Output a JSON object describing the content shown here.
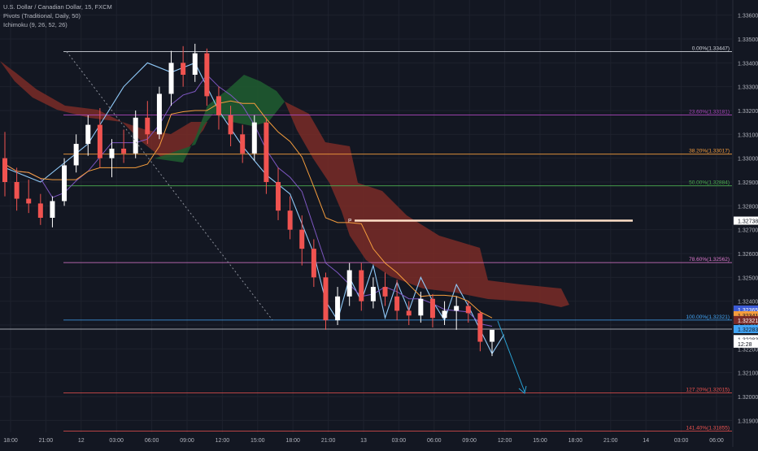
{
  "header": {
    "symbol_line": "U.S. Dollar / Canadian Dollar, 15, FXCM",
    "indicator_1": "Pivots (Traditional, Daily, 50)",
    "indicator_2": "Ichimoku (9, 26, 52, 26)"
  },
  "colors": {
    "background": "#131722",
    "grid": "#1e222d",
    "candle_up": "#ffffff",
    "candle_down": "#f05350",
    "ichimoku_bull_cloud": "#1f5a30",
    "ichimoku_bear_cloud": "#7a2b27",
    "lagging_span": "#90caf9",
    "kijun": "#f59d3d",
    "tenkan": "#7e57c2",
    "pivot_line": "#ffe0c8",
    "projection_arrow": "#29a3d6"
  },
  "chart_data": {
    "type": "line",
    "title": "U.S. Dollar / Canadian Dollar, 15, FXCM",
    "ylim": [
      1.3185,
      1.3365
    ],
    "y_ticks": [
      "1.33600",
      "1.33500",
      "1.33400",
      "1.33300",
      "1.33200",
      "1.33100",
      "1.33000",
      "1.32900",
      "1.32800",
      "1.32700",
      "1.32600",
      "1.32500",
      "1.32400",
      "1.32300",
      "1.32200",
      "1.32100",
      "1.32000",
      "1.31900"
    ],
    "x_ticks": [
      "18:00",
      "21:00",
      "12",
      "03:00",
      "06:00",
      "09:00",
      "12:00",
      "15:00",
      "18:00",
      "21:00",
      "13",
      "03:00",
      "06:00",
      "09:00",
      "12:00",
      "15:00",
      "18:00",
      "21:00",
      "14",
      "03:00",
      "06:00"
    ],
    "fibonacci_levels": [
      {
        "label": "0.00%(1.33447)",
        "price": 1.33447,
        "color": "#d1d4dc"
      },
      {
        "label": "23.60%(1.33181)",
        "price": 1.33181,
        "color": "#ab47bc"
      },
      {
        "label": "38.20%(1.33017)",
        "price": 1.33017,
        "color": "#f59d3d"
      },
      {
        "label": "50.00%(1.32884)",
        "price": 1.32884,
        "color": "#4caf50"
      },
      {
        "label": "78.60%(1.32562)",
        "price": 1.32562,
        "color": "#e07ad0"
      },
      {
        "label": "100.00%(1.32321)",
        "price": 1.32321,
        "color": "#42a5f5"
      },
      {
        "label": "127.20%(1.32015)",
        "price": 1.32015,
        "color": "#f05350"
      },
      {
        "label": "141.40%(1.31855)",
        "price": 1.31855,
        "color": "#f05350"
      }
    ],
    "pivot": {
      "label": "P",
      "price": 1.32738
    },
    "price_badges": [
      {
        "text": "1.32738",
        "price": 1.32738,
        "bg": "#ffffff",
        "fg": "#131722"
      },
      {
        "text": "1.32365",
        "price": 1.32365,
        "bg": "#3c5bd6",
        "fg": "#ffffff"
      },
      {
        "text": "1.32341",
        "price": 1.32341,
        "bg": "#f59d3d",
        "fg": "#131722"
      },
      {
        "text": "1.32321",
        "price": 1.32321,
        "bg": "#7a2b27",
        "fg": "#ffffff"
      },
      {
        "text": "1.32283",
        "price": 1.32283,
        "bg": "#42a5f5",
        "fg": "#131722"
      },
      {
        "text": "1.32283",
        "price": 1.32241,
        "bg": "#ffffff",
        "fg": "#131722"
      },
      {
        "text": "12:28",
        "price": 1.32222,
        "bg": "#ffffff",
        "fg": "#131722"
      }
    ],
    "candles": [
      [
        1.33,
        1.3311,
        1.3284,
        1.329
      ],
      [
        1.329,
        1.3296,
        1.3278,
        1.3283
      ],
      [
        1.3283,
        1.3291,
        1.3277,
        1.3281
      ],
      [
        1.3281,
        1.3285,
        1.3272,
        1.3275
      ],
      [
        1.3275,
        1.3284,
        1.3271,
        1.3282
      ],
      [
        1.3282,
        1.33,
        1.328,
        1.3297
      ],
      [
        1.3297,
        1.331,
        1.3294,
        1.3306
      ],
      [
        1.3306,
        1.3318,
        1.3301,
        1.3314
      ],
      [
        1.3314,
        1.3321,
        1.3296,
        1.33
      ],
      [
        1.33,
        1.3308,
        1.3292,
        1.3304
      ],
      [
        1.3304,
        1.3312,
        1.3298,
        1.3302
      ],
      [
        1.3302,
        1.332,
        1.33,
        1.3317
      ],
      [
        1.3317,
        1.3324,
        1.3306,
        1.331
      ],
      [
        1.331,
        1.333,
        1.3308,
        1.3327
      ],
      [
        1.3327,
        1.3345,
        1.3322,
        1.334
      ],
      [
        1.334,
        1.3347,
        1.333,
        1.3335
      ],
      [
        1.3335,
        1.3348,
        1.3332,
        1.3344
      ],
      [
        1.3344,
        1.3346,
        1.3322,
        1.3326
      ],
      [
        1.3326,
        1.333,
        1.3312,
        1.3318
      ],
      [
        1.3318,
        1.3322,
        1.3305,
        1.331
      ],
      [
        1.331,
        1.3314,
        1.3298,
        1.3302
      ],
      [
        1.3302,
        1.3318,
        1.3299,
        1.3315
      ],
      [
        1.3315,
        1.3317,
        1.3285,
        1.329
      ],
      [
        1.329,
        1.3296,
        1.3274,
        1.3278
      ],
      [
        1.3278,
        1.3284,
        1.3266,
        1.327
      ],
      [
        1.327,
        1.3276,
        1.3255,
        1.3262
      ],
      [
        1.3262,
        1.3266,
        1.3246,
        1.325
      ],
      [
        1.325,
        1.3252,
        1.3228,
        1.3232
      ],
      [
        1.3232,
        1.3246,
        1.323,
        1.3242
      ],
      [
        1.3242,
        1.3256,
        1.3238,
        1.3253
      ],
      [
        1.3253,
        1.3256,
        1.3236,
        1.324
      ],
      [
        1.324,
        1.325,
        1.3237,
        1.3246
      ],
      [
        1.3246,
        1.3252,
        1.3238,
        1.3242
      ],
      [
        1.3242,
        1.3249,
        1.3232,
        1.3236
      ],
      [
        1.3236,
        1.324,
        1.323,
        1.3234
      ],
      [
        1.3234,
        1.3244,
        1.3231,
        1.3241
      ],
      [
        1.3241,
        1.3243,
        1.3229,
        1.3233
      ],
      [
        1.3233,
        1.324,
        1.323,
        1.3236
      ],
      [
        1.3236,
        1.3242,
        1.3228,
        1.3238
      ],
      [
        1.3238,
        1.324,
        1.3231,
        1.3235
      ],
      [
        1.3235,
        1.3236,
        1.3219,
        1.3223
      ],
      [
        1.3223,
        1.3227,
        1.3217,
        1.3228
      ]
    ],
    "lagging_span": [
      [
        0,
        1.3296
      ],
      [
        3,
        1.329
      ],
      [
        7,
        1.3306
      ],
      [
        10,
        1.333
      ],
      [
        12,
        1.334
      ],
      [
        14,
        1.3336
      ],
      [
        16,
        1.334
      ],
      [
        18,
        1.332
      ],
      [
        20,
        1.3305
      ],
      [
        22,
        1.3293
      ],
      [
        24,
        1.3285
      ],
      [
        26,
        1.326
      ],
      [
        27,
        1.324
      ],
      [
        28,
        1.3232
      ],
      [
        29,
        1.325
      ],
      [
        30,
        1.324
      ],
      [
        31,
        1.3255
      ],
      [
        32,
        1.3233
      ],
      [
        33,
        1.3248
      ],
      [
        34,
        1.3236
      ],
      [
        35,
        1.325
      ],
      [
        36,
        1.324
      ],
      [
        37,
        1.3232
      ],
      [
        38,
        1.3247
      ],
      [
        39,
        1.3238
      ],
      [
        40,
        1.3228
      ],
      [
        41,
        1.3218
      ],
      [
        42,
        1.3226
      ]
    ]
  }
}
